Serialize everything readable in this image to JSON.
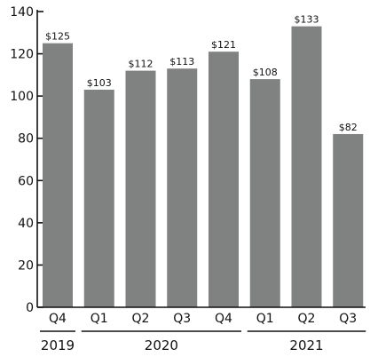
{
  "chart_data": {
    "type": "bar",
    "categories": [
      "Q4",
      "Q1",
      "Q2",
      "Q3",
      "Q4",
      "Q1",
      "Q2",
      "Q3"
    ],
    "values": [
      125,
      103,
      112,
      113,
      121,
      108,
      133,
      82
    ],
    "data_labels": [
      "$125",
      "$103",
      "$112",
      "$113",
      "$121",
      "$108",
      "$133",
      "$82"
    ],
    "year_groups": [
      {
        "label": "2019",
        "start": 0,
        "end": 0
      },
      {
        "label": "2020",
        "start": 1,
        "end": 4
      },
      {
        "label": "2021",
        "start": 5,
        "end": 7
      }
    ],
    "yticks": [
      0,
      20,
      40,
      60,
      80,
      100,
      120,
      140
    ],
    "ylim": [
      0,
      140
    ],
    "grid": false,
    "legend": "none",
    "bar_color": "#808181",
    "title": "",
    "xlabel": "",
    "ylabel": ""
  }
}
